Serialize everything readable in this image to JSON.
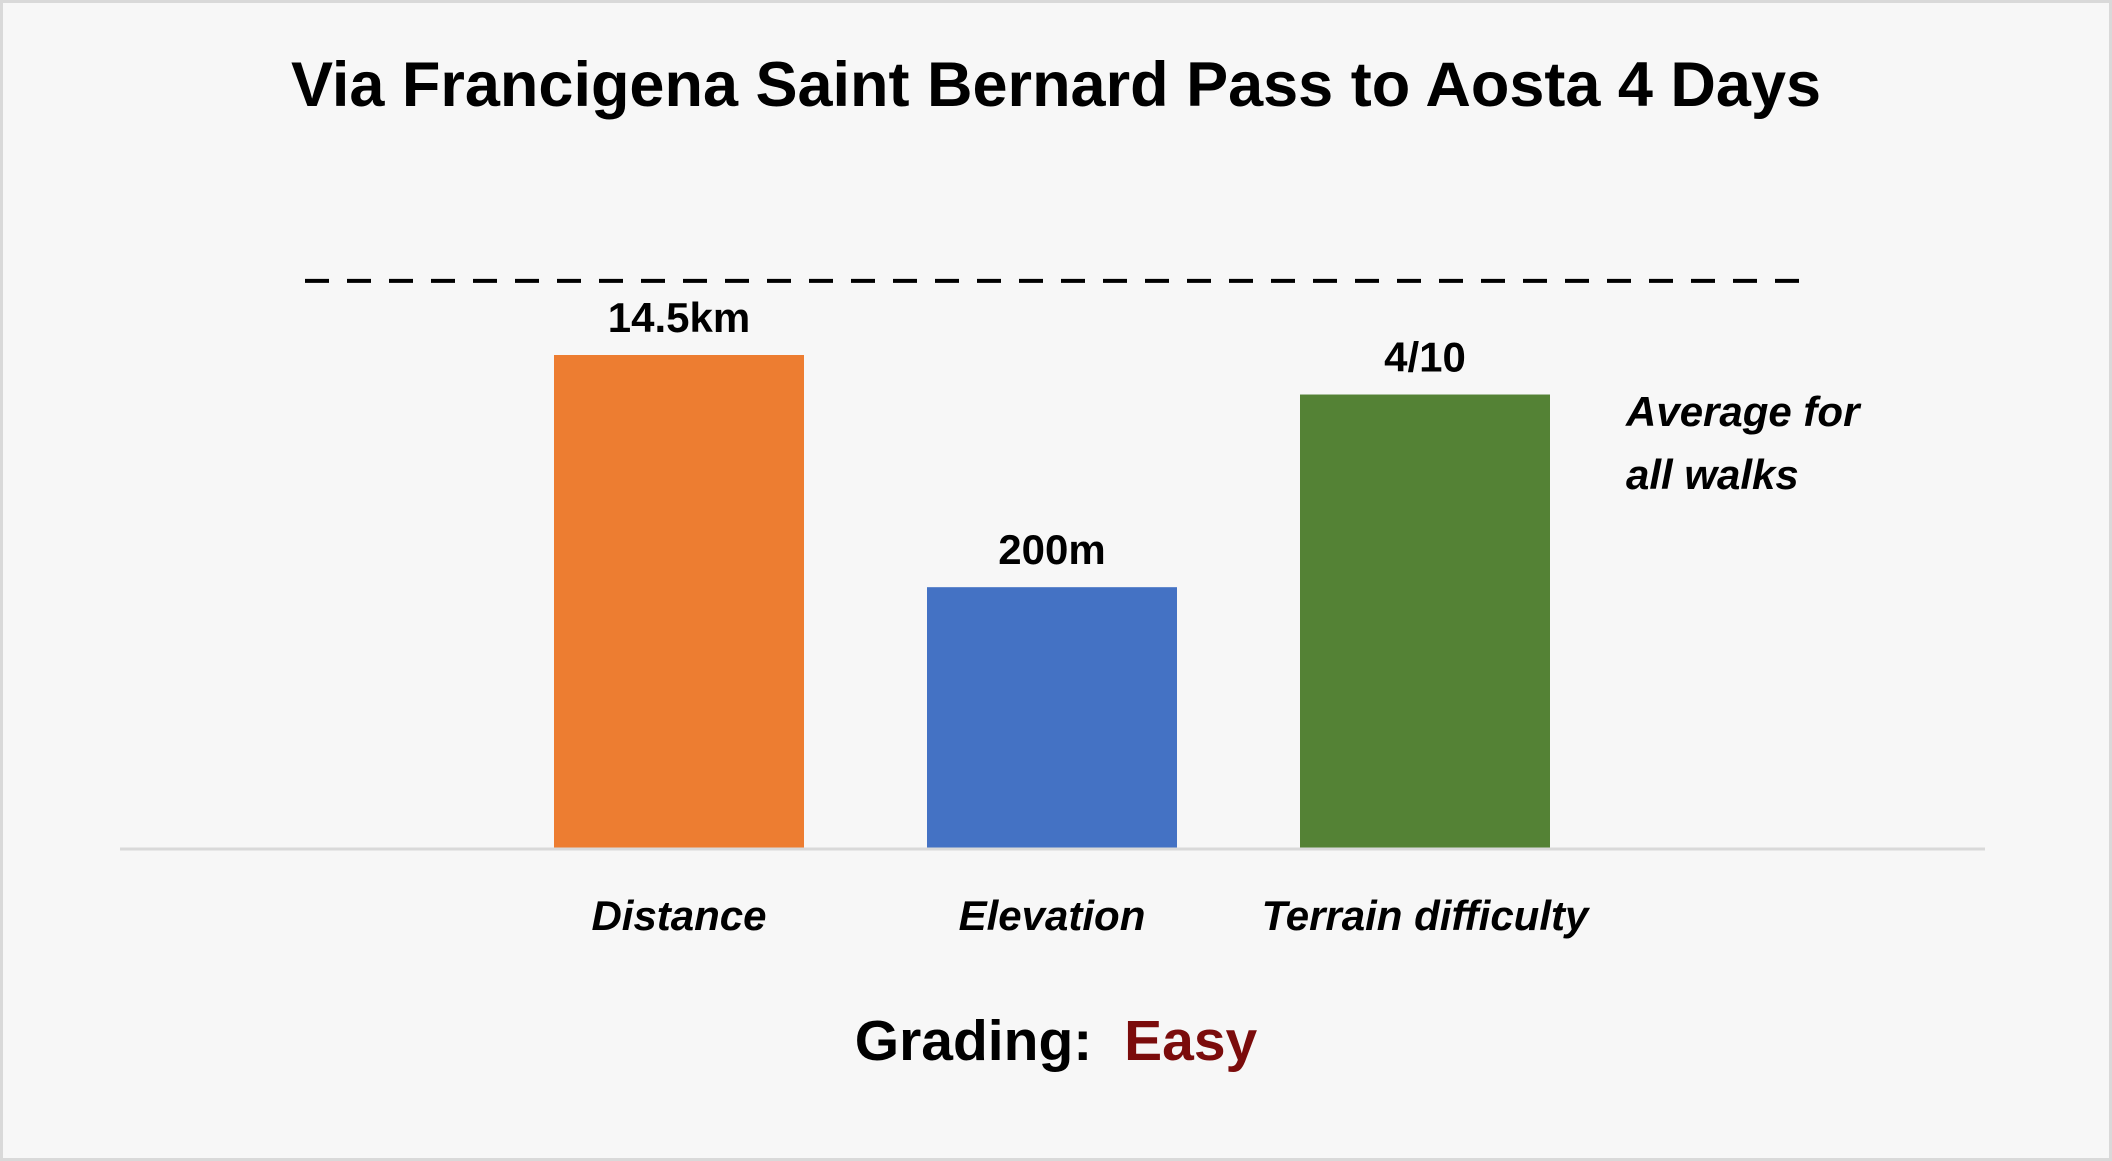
{
  "chart_data": {
    "type": "bar",
    "title": "Via Francigena  Saint Bernard Pass to Aosta 4 Days",
    "categories": [
      "Distance",
      "Elevation",
      "Terrain difficulty"
    ],
    "series": [
      {
        "values": [
          10,
          5.3,
          9.2
        ],
        "labels": [
          "14.5km",
          "200m",
          "4/10"
        ],
        "colors": [
          "#ED7D31",
          "#4472C4",
          "#548235"
        ]
      }
    ],
    "reference_line": {
      "value": 11.5,
      "label_lines": [
        "Average for",
        "all walks"
      ],
      "style": "dashed",
      "color": "#000000"
    },
    "grading": {
      "label": "Grading:",
      "value": "Easy",
      "value_color": "#7B0C0C"
    },
    "ylim": [
      0,
      16.5
    ],
    "xlabel": "",
    "ylabel": "",
    "grid": false,
    "legend": "none",
    "background": "#F7F7F7",
    "border_color": "#D9D9D9",
    "axis_color": "#D9D9D9"
  }
}
